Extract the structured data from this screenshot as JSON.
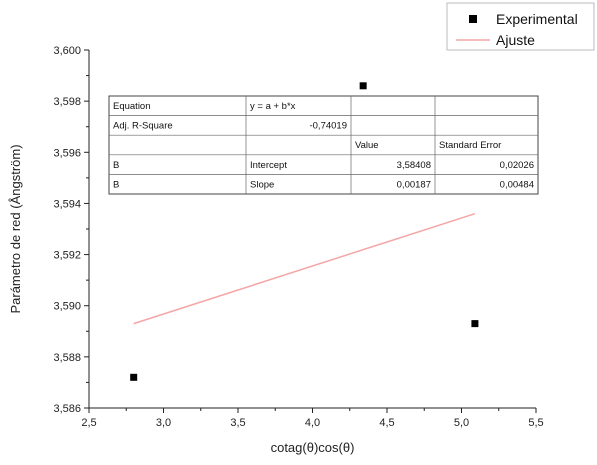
{
  "chart_data": {
    "type": "scatter",
    "xlabel": "cotag(θ)cos(θ)",
    "ylabel": "Parámetro de red (Ångström)",
    "xlim": [
      2.5,
      5.5
    ],
    "ylim": [
      3.586,
      3.6
    ],
    "x_ticks": [
      "2,5",
      "3,0",
      "3,5",
      "4,0",
      "4,5",
      "5,0",
      "5,5"
    ],
    "y_ticks": [
      "3,586",
      "3,588",
      "3,590",
      "3,592",
      "3,594",
      "3,596",
      "3,598",
      "3,600"
    ],
    "grid": false,
    "legend_position": "top-right",
    "series": [
      {
        "name": "Experimental",
        "kind": "points",
        "color": "#000000",
        "x": [
          2.8,
          4.34,
          5.09
        ],
        "y": [
          3.5872,
          3.5986,
          3.5893
        ]
      },
      {
        "name": "Ajuste",
        "kind": "line",
        "color": "#f4a6a6",
        "x": [
          2.8,
          5.09
        ],
        "y": [
          3.5893,
          3.5936
        ]
      }
    ],
    "fit_table": {
      "rows": [
        [
          "Equation",
          "y = a + b*x",
          "",
          ""
        ],
        [
          "Adj. R-Square",
          "-0,74019",
          "",
          ""
        ],
        [
          "",
          "",
          "Value",
          "Standard Error"
        ],
        [
          "B",
          "Intercept",
          "3,58408",
          "0,02026"
        ],
        [
          "B",
          "Slope",
          "0,00187",
          "0,00484"
        ]
      ]
    }
  }
}
